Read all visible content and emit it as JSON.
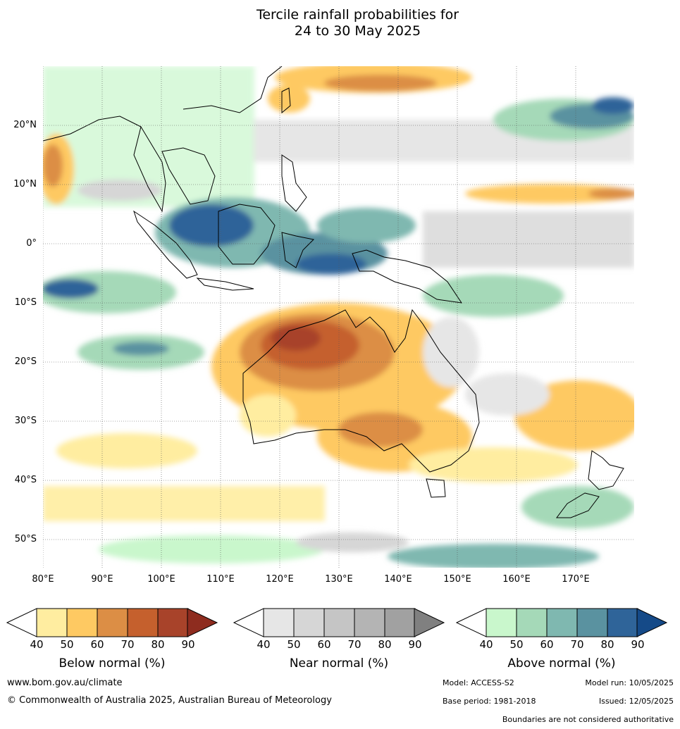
{
  "title": {
    "line1": "Tercile rainfall probabilities for",
    "line2": "24 to 30 May 2025"
  },
  "map": {
    "lat_labels": [
      "20°N",
      "10°N",
      "0°",
      "10°S",
      "20°S",
      "30°S",
      "40°S",
      "50°S"
    ],
    "lon_labels": [
      "80°E",
      "90°E",
      "100°E",
      "110°E",
      "120°E",
      "130°E",
      "140°E",
      "150°E",
      "160°E",
      "170°E"
    ],
    "region": "80°E–180°E, 30°N–55°S"
  },
  "legends": [
    {
      "id": "below",
      "title": "Below normal (%)",
      "ticks": [
        "40",
        "50",
        "60",
        "70",
        "80",
        "90"
      ],
      "colors": [
        "#ffeda0",
        "#fec962",
        "#dc8e45",
        "#c5602d",
        "#a8432a",
        "#8e2c1f"
      ]
    },
    {
      "id": "near",
      "title": "Near normal (%)",
      "ticks": [
        "40",
        "50",
        "60",
        "70",
        "80",
        "90"
      ],
      "colors": [
        "#e6e6e6",
        "#d6d6d6",
        "#c5c5c5",
        "#b4b4b4",
        "#a1a1a1",
        "#808080"
      ]
    },
    {
      "id": "above",
      "title": "Above normal (%)",
      "ticks": [
        "40",
        "50",
        "60",
        "70",
        "80",
        "90"
      ],
      "colors": [
        "#c9f7cc",
        "#a5d9b8",
        "#7fb8b0",
        "#5a92a0",
        "#2f6499",
        "#154a88"
      ]
    }
  ],
  "footer": {
    "website": "www.bom.gov.au/climate",
    "copyright": "© Commonwealth of Australia 2025, Australian Bureau of Meteorology",
    "model": "Model: ACCESS-S2",
    "model_run": "Model run: 10/05/2025",
    "base_period": "Base period: 1981-2018",
    "issued": "Issued: 12/05/2025",
    "disclaimer": "Boundaries are not considered authoritative"
  }
}
